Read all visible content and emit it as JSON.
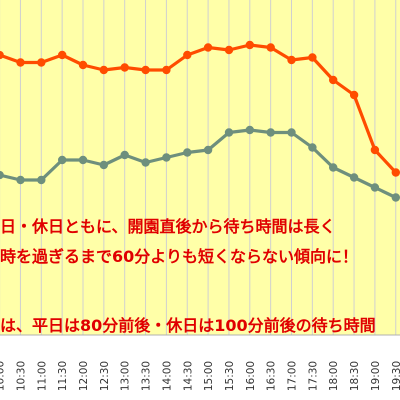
{
  "chart_data": {
    "type": "line",
    "x": [
      "10:00",
      "10:30",
      "11:00",
      "11:30",
      "12:00",
      "12:30",
      "13:00",
      "13:30",
      "14:00",
      "14:30",
      "15:00",
      "15:30",
      "16:00",
      "16:30",
      "17:00",
      "17:30",
      "18:00",
      "18:30",
      "19:00",
      "19:30"
    ],
    "series": [
      {
        "color": "#ff4c00",
        "values": [
          112,
          109,
          109,
          112,
          108,
          106,
          107,
          106,
          106,
          112,
          115,
          114,
          116,
          115,
          110,
          111,
          102,
          96,
          74,
          65
        ]
      },
      {
        "color": "#6e8f7d",
        "values": [
          64,
          62,
          62,
          70,
          70,
          68,
          72,
          69,
          71,
          73,
          74,
          81,
          82,
          81,
          81,
          75,
          67,
          63,
          59,
          55
        ]
      }
    ],
    "ylim": [
      0,
      130
    ],
    "grid": true,
    "annotations": [
      "日・休日ともに、開園直後から待ち時間は長く",
      "時を過ぎるまで60分よりも短くならない傾向に！",
      "は、平日は80分前後・休日は100分前後の待ち時間"
    ],
    "colors": {
      "plot_background": "#ffffa8",
      "gridline": "#d0d0d0",
      "annotation": "#e00000"
    }
  }
}
